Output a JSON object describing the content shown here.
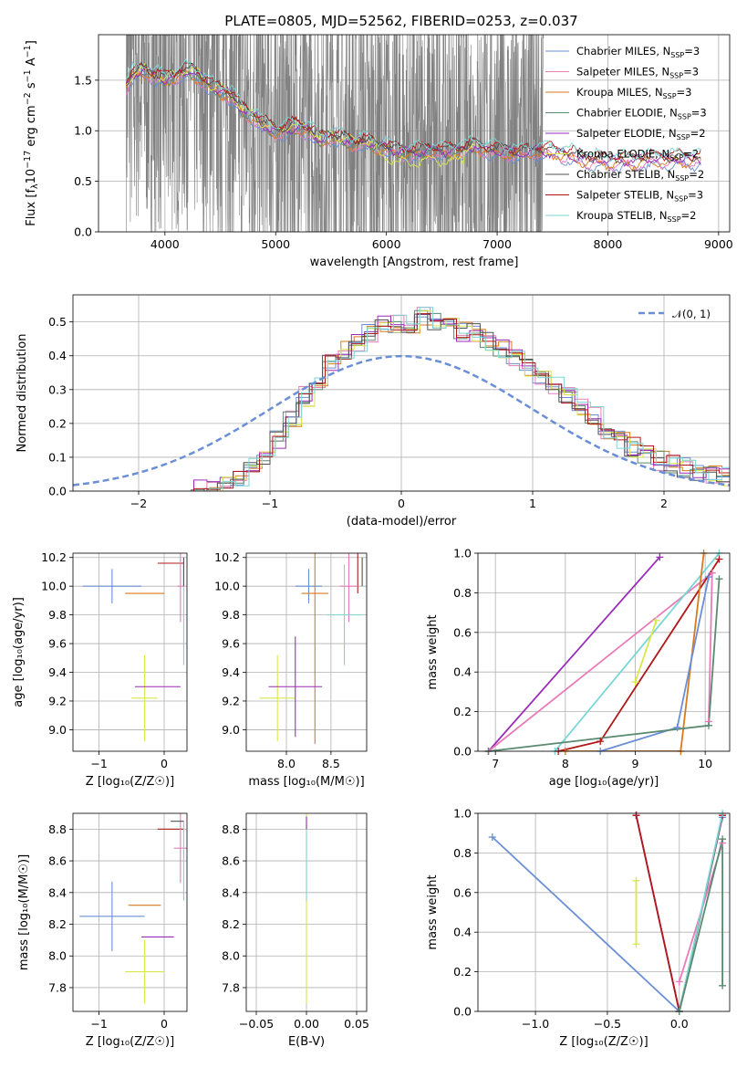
{
  "figure_title": "PLATE=0805, MJD=52562, FIBERID=0253, z=0.037",
  "legend_labels": {
    "cm": "Chabrier MILES, N",
    "sm": "Salpeter MILES, N",
    "km": "Kroupa MILES, N",
    "ce": "Chabrier ELODIE, N",
    "se": "Salpeter ELODIE, N",
    "ke": "Kroupa ELODIE, N",
    "cs": "Chabrier STELIB, N",
    "ss": "Salpeter STELIB, N",
    "ks": "Kroupa STELIB, N",
    "sub": "SSP",
    "eq": "=",
    "norm": "𝒩(0, 1)"
  },
  "models": [
    {
      "key": "cm",
      "name": "Chabrier MILES",
      "nssp": "3",
      "color": "#6a8fd6"
    },
    {
      "key": "sm",
      "name": "Salpeter MILES",
      "nssp": "3",
      "color": "#e87bb8"
    },
    {
      "key": "km",
      "name": "Kroupa MILES",
      "nssp": "3",
      "color": "#d97a1e"
    },
    {
      "key": "ce",
      "name": "Chabrier ELODIE",
      "nssp": "3",
      "color": "#5a8a70"
    },
    {
      "key": "se",
      "name": "Salpeter ELODIE",
      "nssp": "2",
      "color": "#9a2cb8"
    },
    {
      "key": "ke",
      "name": "Kroupa ELODIE",
      "nssp": "2",
      "color": "#d8e84a"
    },
    {
      "key": "cs",
      "name": "Chabrier STELIB",
      "nssp": "2",
      "color": "#505050"
    },
    {
      "key": "ss",
      "name": "Salpeter STELIB",
      "nssp": "3",
      "color": "#b01818"
    },
    {
      "key": "ks",
      "name": "Kroupa STELIB",
      "nssp": "2",
      "color": "#7ad6d6"
    }
  ],
  "chart_data": [
    {
      "id": "spectrum",
      "type": "line",
      "xlabel": "wavelength [Angstrom, rest frame]",
      "ylabel_parts": {
        "a": "Flux [f",
        "b": "λ",
        "c": "10",
        "d": "−17",
        "e": " erg cm",
        "f": "−2",
        "g": " s",
        "h": "−1",
        "i": " A",
        "j": "−1",
        "k": "]"
      },
      "xlim": [
        3400,
        9100
      ],
      "ylim": [
        0,
        1.95
      ],
      "xticks": [
        4000,
        5000,
        6000,
        7000,
        8000,
        9000
      ],
      "yticks": [
        0.0,
        0.5,
        1.0,
        1.5
      ],
      "data_color": "#808080",
      "data_range": [
        3650,
        7420
      ],
      "model_envelope": {
        "x": [
          3650,
          3700,
          3800,
          3900,
          4000,
          4100,
          4200,
          4300,
          4400,
          4500,
          4600,
          4700,
          4800,
          4900,
          5000,
          5100,
          5200,
          5300,
          5400,
          5500,
          5600,
          5700,
          5800,
          5900,
          6000,
          6100,
          6200,
          6300,
          6400,
          6500,
          6600,
          6700,
          6800,
          6900,
          7000,
          7200,
          7400,
          7600,
          7800,
          8000,
          8200,
          8400,
          8600,
          8800
        ],
        "y": [
          1.45,
          1.55,
          1.6,
          1.55,
          1.5,
          1.55,
          1.6,
          1.55,
          1.45,
          1.4,
          1.35,
          1.2,
          1.15,
          1.05,
          1.0,
          1.02,
          1.05,
          1.0,
          0.92,
          0.95,
          0.92,
          0.88,
          0.9,
          0.85,
          0.84,
          0.8,
          0.78,
          0.8,
          0.82,
          0.8,
          0.8,
          0.82,
          0.85,
          0.82,
          0.8,
          0.78,
          0.8,
          0.78,
          0.72,
          0.7,
          0.7,
          0.72,
          0.72,
          0.72
        ]
      }
    },
    {
      "id": "residuals",
      "type": "bar",
      "xlabel": "(data-model)/error",
      "ylabel": "Normed distribution",
      "xlim": [
        -2.5,
        2.5
      ],
      "ylim": [
        0,
        0.58
      ],
      "xticks": [
        -2,
        -1,
        0,
        1,
        2
      ],
      "yticks": [
        0.0,
        0.1,
        0.2,
        0.3,
        0.4,
        0.5
      ],
      "legend": "𝒩(0, 1)",
      "bin_width": 0.1,
      "bin_start": -1.6,
      "hist": [
        0.005,
        0.01,
        0.02,
        0.04,
        0.07,
        0.1,
        0.15,
        0.22,
        0.28,
        0.32,
        0.38,
        0.42,
        0.44,
        0.47,
        0.5,
        0.49,
        0.48,
        0.52,
        0.5,
        0.49,
        0.47,
        0.47,
        0.44,
        0.42,
        0.4,
        0.36,
        0.34,
        0.31,
        0.28,
        0.25,
        0.22,
        0.18,
        0.15,
        0.13,
        0.11,
        0.09,
        0.08,
        0.07,
        0.06,
        0.05,
        0.04
      ]
    },
    {
      "id": "age-vs-Z",
      "type": "scatter",
      "xlabel": "Z [log₁₀(Z/Z☉)]",
      "ylabel": "age  [log₁₀(age/yr)]",
      "xlim": [
        -1.4,
        0.35
      ],
      "ylim": [
        8.85,
        10.23
      ],
      "xticks": [
        -1,
        0
      ],
      "yticks": [
        9.0,
        9.2,
        9.4,
        9.6,
        9.8,
        10.0,
        10.2
      ],
      "points": [
        {
          "m": "cm",
          "x": -0.8,
          "xe": 0.45,
          "y": 10.0,
          "ye": 0.12
        },
        {
          "m": "km",
          "x": -0.3,
          "xe": 0.3,
          "y": 9.95,
          "ye": 0.0
        },
        {
          "m": "ss",
          "x": 0.1,
          "xe": 0.2,
          "y": 10.16,
          "ye": 0.0
        },
        {
          "m": "sm",
          "x": 0.25,
          "xe": 0.05,
          "y": 10.0,
          "ye": 0.25
        },
        {
          "m": "ks",
          "x": 0.3,
          "xe": 0.0,
          "y": 9.8,
          "ye": 0.35
        },
        {
          "m": "ke",
          "x": -0.3,
          "xe": 0.2,
          "y": 9.22,
          "ye": 0.3
        },
        {
          "m": "se",
          "x": -0.1,
          "xe": 0.35,
          "y": 9.3,
          "ye": 0.0
        },
        {
          "m": "cs",
          "x": 0.3,
          "xe": 0.0,
          "y": 10.1,
          "ye": 0.1
        }
      ]
    },
    {
      "id": "age-vs-mass",
      "type": "scatter",
      "xlabel": "mass [log₁₀(M/M☉)]",
      "ylabel": "",
      "xlim": [
        7.55,
        8.9
      ],
      "ylim": [
        8.85,
        10.23
      ],
      "xticks": [
        8.0,
        8.5
      ],
      "yticks": [
        9.0,
        9.2,
        9.4,
        9.6,
        9.8,
        10.0,
        10.2
      ],
      "points": [
        {
          "m": "cm",
          "x": 8.25,
          "xe": 0.15,
          "y": 10.0,
          "ye": 0.12
        },
        {
          "m": "km",
          "x": 8.32,
          "xe": 0.15,
          "y": 9.95,
          "ye": 1.05
        },
        {
          "m": "ss",
          "x": 8.8,
          "xe": 0.0,
          "y": 10.15,
          "ye": 0.2
        },
        {
          "m": "sm",
          "x": 8.7,
          "xe": 0.1,
          "y": 10.0,
          "ye": 0.25
        },
        {
          "m": "ks",
          "x": 8.65,
          "xe": 0.2,
          "y": 9.8,
          "ye": 0.35
        },
        {
          "m": "ke",
          "x": 7.9,
          "xe": 0.2,
          "y": 9.22,
          "ye": 0.3
        },
        {
          "m": "se",
          "x": 8.1,
          "xe": 0.3,
          "y": 9.3,
          "ye": 0.35
        },
        {
          "m": "cs",
          "x": 8.85,
          "xe": 0.0,
          "y": 10.1,
          "ye": 0.1
        }
      ]
    },
    {
      "id": "weight-vs-age",
      "type": "line",
      "xlabel": "age  [log₁₀(age/yr)]",
      "ylabel": "mass weight",
      "xlim": [
        6.75,
        10.35
      ],
      "ylim": [
        0,
        1.0
      ],
      "xticks": [
        7,
        8,
        9,
        10
      ],
      "yticks": [
        0.0,
        0.2,
        0.4,
        0.6,
        0.8,
        1.0
      ],
      "series": [
        {
          "m": "se",
          "x": [
            6.9,
            9.35
          ],
          "y": [
            0.0,
            0.98
          ]
        },
        {
          "m": "sm",
          "x": [
            6.9,
            10.1,
            10.05
          ],
          "y": [
            0.0,
            0.9,
            0.15
          ]
        },
        {
          "m": "ks",
          "x": [
            7.85,
            10.2
          ],
          "y": [
            0.0,
            1.0
          ]
        },
        {
          "m": "ke",
          "x": [
            9.0,
            9.3
          ],
          "y": [
            0.35,
            0.66
          ]
        },
        {
          "m": "ss",
          "x": [
            7.9,
            8.5,
            10.2
          ],
          "y": [
            0.0,
            0.05,
            0.97
          ]
        },
        {
          "m": "km",
          "x": [
            8.0,
            9.65,
            9.98
          ],
          "y": [
            0.0,
            0.0,
            1.0
          ]
        },
        {
          "m": "cm",
          "x": [
            8.5,
            9.6,
            10.05
          ],
          "y": [
            0.0,
            0.12,
            0.88
          ]
        },
        {
          "m": "ce",
          "x": [
            6.9,
            10.05,
            10.2
          ],
          "y": [
            0.0,
            0.13,
            0.87
          ]
        }
      ]
    },
    {
      "id": "mass-vs-Z",
      "type": "scatter",
      "xlabel": "Z [log₁₀(Z/Z☉)]",
      "ylabel": "mass [log₁₀(M/M☉)]",
      "xlim": [
        -1.4,
        0.35
      ],
      "ylim": [
        7.65,
        8.9
      ],
      "xticks": [
        -1,
        0
      ],
      "yticks": [
        7.8,
        8.0,
        8.2,
        8.4,
        8.6,
        8.8
      ],
      "points": [
        {
          "m": "cm",
          "x": -0.8,
          "xe": 0.5,
          "y": 8.25,
          "ye": 0.22
        },
        {
          "m": "km",
          "x": -0.3,
          "xe": 0.25,
          "y": 8.32,
          "ye": 0.0
        },
        {
          "m": "ss",
          "x": 0.1,
          "xe": 0.2,
          "y": 8.8,
          "ye": 0.0
        },
        {
          "m": "sm",
          "x": 0.25,
          "xe": 0.1,
          "y": 8.68,
          "ye": 0.22
        },
        {
          "m": "ks",
          "x": 0.3,
          "xe": 0.0,
          "y": 8.6,
          "ye": 0.25
        },
        {
          "m": "ke",
          "x": -0.3,
          "xe": 0.3,
          "y": 7.9,
          "ye": 0.2
        },
        {
          "m": "se",
          "x": -0.1,
          "xe": 0.25,
          "y": 8.12,
          "ye": 0.0
        },
        {
          "m": "cs",
          "x": 0.2,
          "xe": 0.1,
          "y": 8.85,
          "ye": 0.0
        }
      ]
    },
    {
      "id": "mass-vs-EBV",
      "type": "scatter",
      "xlabel": "E(B-V)",
      "ylabel": "",
      "xlim": [
        -0.06,
        0.06
      ],
      "ylim": [
        7.65,
        8.9
      ],
      "xticks": [
        -0.05,
        0.0,
        0.05
      ],
      "yticks": [
        7.8,
        8.0,
        8.2,
        8.4,
        8.6,
        8.8
      ],
      "points": [
        {
          "m": "ke",
          "x": 0.0,
          "xe": 0.0,
          "y": 8.3,
          "ye": 0.6
        },
        {
          "m": "ks",
          "x": 0.0,
          "xe": 0.0,
          "y": 8.6,
          "ye": 0.25
        },
        {
          "m": "se",
          "x": 0.0,
          "xe": 0.0,
          "y": 8.84,
          "ye": 0.04
        }
      ]
    },
    {
      "id": "weight-vs-Z",
      "type": "line",
      "xlabel": "Z [log₁₀(Z/Z☉)]",
      "ylabel": "mass weight",
      "xlim": [
        -1.4,
        0.35
      ],
      "ylim": [
        0,
        1.0
      ],
      "xticks": [
        -1.0,
        -0.5,
        0.0
      ],
      "yticks": [
        0.0,
        0.2,
        0.4,
        0.6,
        0.8,
        1.0
      ],
      "series": [
        {
          "m": "cm",
          "x": [
            -1.3,
            0.0,
            0.3
          ],
          "y": [
            0.88,
            0.0,
            0.98
          ]
        },
        {
          "m": "se",
          "x": [
            -0.3,
            0.0
          ],
          "y": [
            0.99,
            0.0
          ]
        },
        {
          "m": "ss",
          "x": [
            -0.3,
            0.0,
            0.3
          ],
          "y": [
            0.99,
            0.0,
            0.99
          ]
        },
        {
          "m": "sm",
          "x": [
            0.0,
            0.3
          ],
          "y": [
            0.15,
            0.85
          ]
        },
        {
          "m": "ke",
          "x": [
            -0.3,
            -0.3
          ],
          "y": [
            0.34,
            0.66
          ]
        },
        {
          "m": "ks",
          "x": [
            0.0,
            0.3
          ],
          "y": [
            0.0,
            1.0
          ]
        },
        {
          "m": "ce",
          "x": [
            0.0,
            0.3,
            0.3
          ],
          "y": [
            0.0,
            0.87,
            0.13
          ]
        }
      ]
    }
  ]
}
